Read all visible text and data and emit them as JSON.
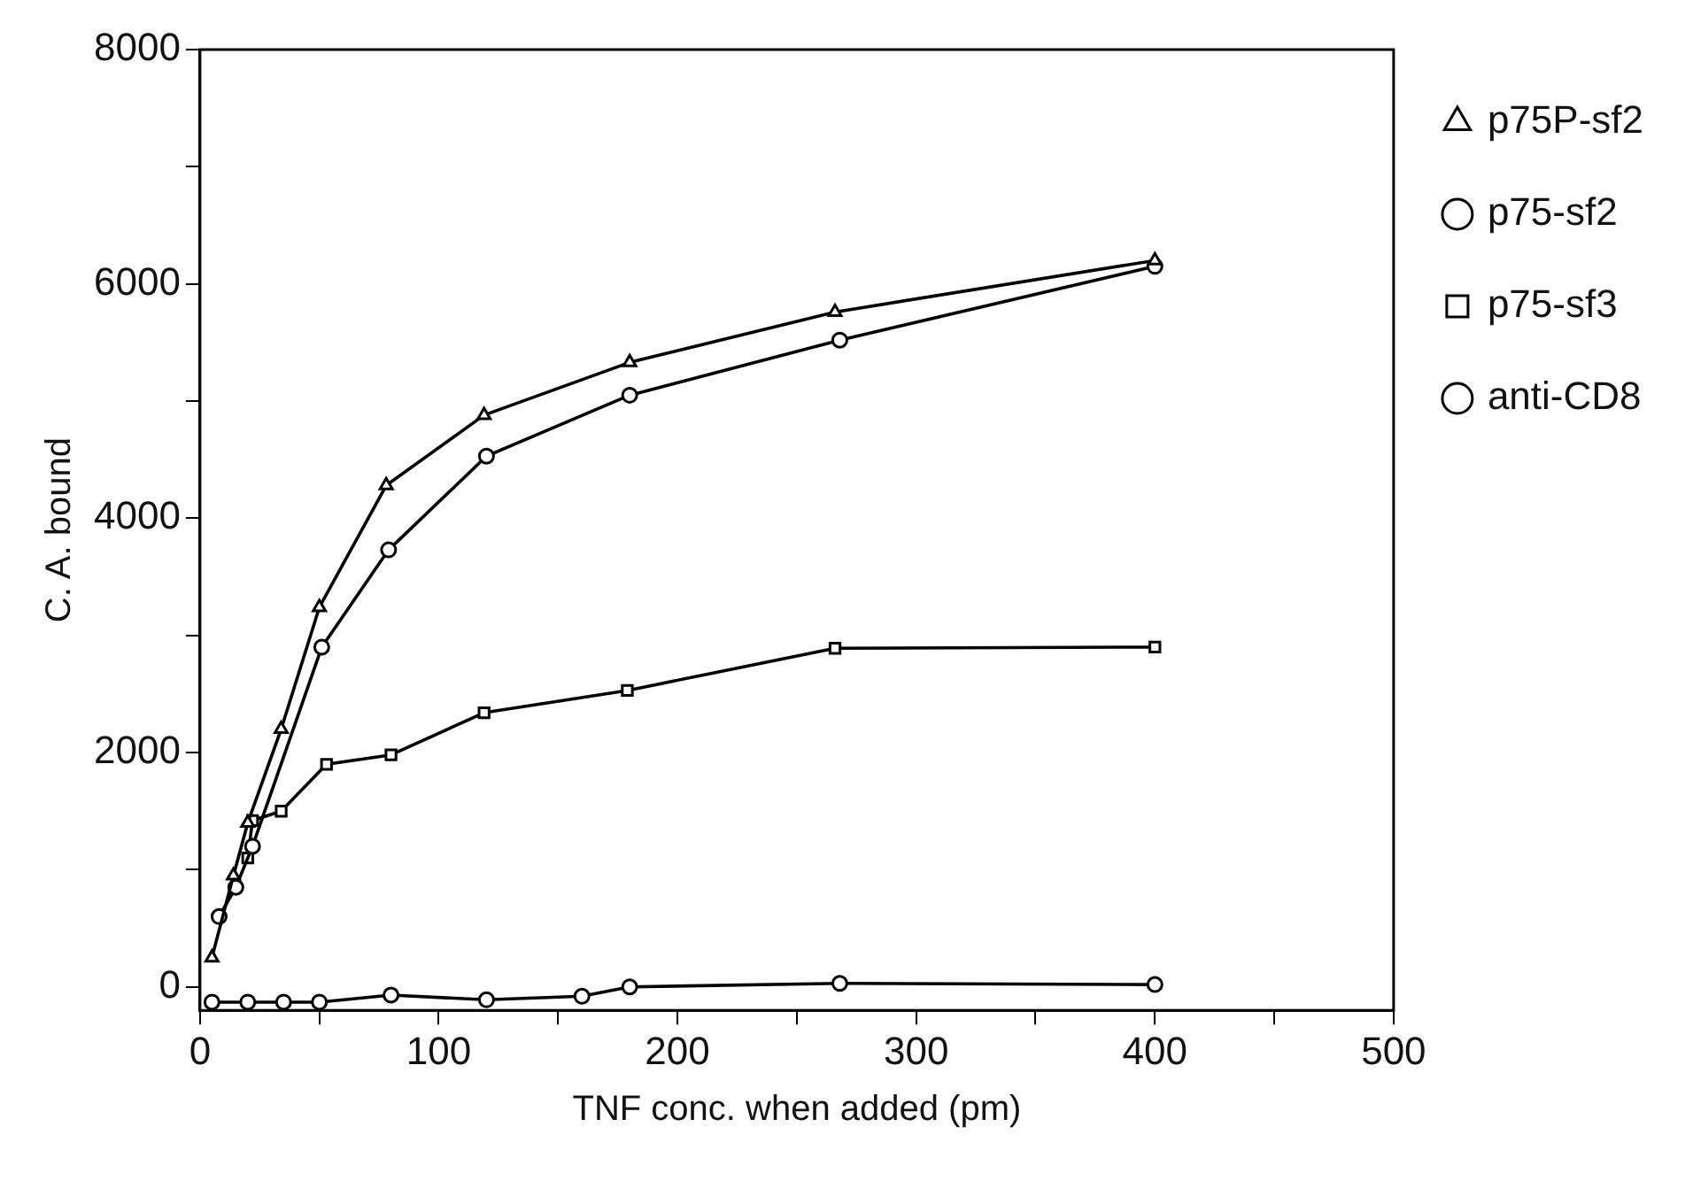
{
  "chart_data": {
    "type": "line",
    "xlabel": "TNF conc. when added (pm)",
    "ylabel": "C. A. bound",
    "xlim": [
      0,
      500
    ],
    "xticks": [
      0,
      {
        "value": 50,
        "label": null
      },
      100,
      {
        "value": 150,
        "label": null
      },
      200,
      {
        "value": 250,
        "label": null
      },
      300,
      {
        "value": 350,
        "label": null
      },
      400,
      {
        "value": 450,
        "label": null
      },
      500
    ],
    "ylim": [
      -200,
      8000
    ],
    "yticks": [
      0,
      {
        "value": 1000,
        "label": null
      },
      2000,
      {
        "value": 3000,
        "label": null
      },
      4000,
      {
        "value": 5000,
        "label": null
      },
      6000,
      {
        "value": 7000,
        "label": null
      },
      8000
    ],
    "grid": false,
    "legend": "right",
    "line_style": "solid",
    "series": [
      {
        "name": "p75P-sf2",
        "color": "#000000",
        "marker": "triangle",
        "x": [
          5,
          14,
          20,
          34,
          50,
          78,
          119,
          180,
          266,
          400
        ],
        "values": [
          250,
          950,
          1400,
          2200,
          3240,
          4280,
          4880,
          5330,
          5760,
          6200
        ]
      },
      {
        "name": "p75-sf2",
        "color": "#000000",
        "marker": "circle",
        "x": [
          8,
          15,
          22,
          51,
          79,
          120,
          180,
          268,
          400
        ],
        "values": [
          600,
          850,
          1200,
          2900,
          3730,
          4530,
          5050,
          5520,
          6150
        ]
      },
      {
        "name": "p75-sf3",
        "color": "#000000",
        "marker": "square",
        "x": [
          20,
          22,
          34,
          53,
          80,
          119,
          179,
          266,
          400
        ],
        "values": [
          1100,
          1420,
          1500,
          1900,
          1980,
          2340,
          2530,
          2890,
          2900
        ]
      },
      {
        "name": "anti-CD8",
        "color": "#000000",
        "marker": "circle",
        "x": [
          5,
          20,
          35,
          50,
          80,
          120,
          160,
          180,
          268,
          400
        ],
        "values": [
          -130,
          -130,
          -130,
          -130,
          -70,
          -110,
          -80,
          0,
          30,
          20
        ]
      }
    ]
  }
}
